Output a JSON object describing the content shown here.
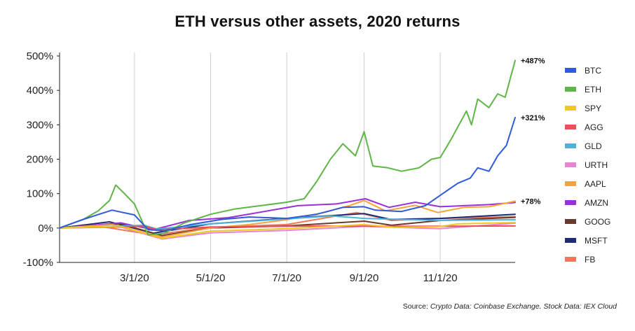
{
  "chart_data": {
    "type": "line",
    "title": "ETH versus other assets, 2020 returns",
    "xlabel": "",
    "ylabel": "",
    "x_range": [
      "2020-01-01",
      "2020-12-31"
    ],
    "ylim": [
      -100,
      500
    ],
    "y_ticks": [
      -100,
      0,
      100,
      200,
      300,
      400,
      500
    ],
    "y_tick_labels": [
      "-100%",
      "0%",
      "100%",
      "200%",
      "300%",
      "400%",
      "500%"
    ],
    "x_ticks": [
      "2020-03-01",
      "2020-05-01",
      "2020-07-01",
      "2020-09-01",
      "2020-11-01"
    ],
    "x_tick_labels": [
      "3/1/20",
      "5/1/20",
      "7/1/20",
      "9/1/20",
      "11/1/20"
    ],
    "grid": "vertical lines at x ticks",
    "legend_position": "right",
    "end_labels": [
      {
        "text": "+487%",
        "series": "ETH",
        "value": 487
      },
      {
        "text": "+321%",
        "series": "BTC",
        "value": 321
      },
      {
        "text": "+78%",
        "series": "AAPL",
        "value": 78
      }
    ],
    "series": [
      {
        "name": "BTC",
        "color": "#2f5bd8",
        "points": [
          [
            "2020-01-01",
            0
          ],
          [
            "2020-01-20",
            25
          ],
          [
            "2020-02-12",
            52
          ],
          [
            "2020-03-01",
            38
          ],
          [
            "2020-03-12",
            -5
          ],
          [
            "2020-03-25",
            -8
          ],
          [
            "2020-04-15",
            10
          ],
          [
            "2020-05-10",
            25
          ],
          [
            "2020-06-01",
            32
          ],
          [
            "2020-07-01",
            28
          ],
          [
            "2020-07-25",
            40
          ],
          [
            "2020-08-15",
            60
          ],
          [
            "2020-09-01",
            62
          ],
          [
            "2020-09-10",
            52
          ],
          [
            "2020-10-01",
            48
          ],
          [
            "2020-10-20",
            65
          ],
          [
            "2020-11-01",
            95
          ],
          [
            "2020-11-15",
            130
          ],
          [
            "2020-11-25",
            145
          ],
          [
            "2020-12-01",
            175
          ],
          [
            "2020-12-10",
            165
          ],
          [
            "2020-12-17",
            210
          ],
          [
            "2020-12-24",
            240
          ],
          [
            "2020-12-31",
            321
          ]
        ]
      },
      {
        "name": "ETH",
        "color": "#5fb547",
        "points": [
          [
            "2020-01-01",
            0
          ],
          [
            "2020-01-20",
            25
          ],
          [
            "2020-02-01",
            50
          ],
          [
            "2020-02-10",
            80
          ],
          [
            "2020-02-15",
            125
          ],
          [
            "2020-02-22",
            100
          ],
          [
            "2020-03-01",
            70
          ],
          [
            "2020-03-12",
            -20
          ],
          [
            "2020-03-25",
            -15
          ],
          [
            "2020-04-10",
            15
          ],
          [
            "2020-05-01",
            40
          ],
          [
            "2020-05-20",
            55
          ],
          [
            "2020-06-10",
            65
          ],
          [
            "2020-07-01",
            75
          ],
          [
            "2020-07-15",
            85
          ],
          [
            "2020-07-25",
            135
          ],
          [
            "2020-08-05",
            200
          ],
          [
            "2020-08-15",
            245
          ],
          [
            "2020-08-25",
            210
          ],
          [
            "2020-09-01",
            280
          ],
          [
            "2020-09-08",
            180
          ],
          [
            "2020-09-20",
            175
          ],
          [
            "2020-10-01",
            165
          ],
          [
            "2020-10-15",
            175
          ],
          [
            "2020-10-25",
            200
          ],
          [
            "2020-11-01",
            205
          ],
          [
            "2020-11-10",
            260
          ],
          [
            "2020-11-22",
            340
          ],
          [
            "2020-11-26",
            300
          ],
          [
            "2020-12-01",
            375
          ],
          [
            "2020-12-10",
            350
          ],
          [
            "2020-12-17",
            390
          ],
          [
            "2020-12-23",
            380
          ],
          [
            "2020-12-31",
            487
          ]
        ]
      },
      {
        "name": "SPY",
        "color": "#f2c81f",
        "points": [
          [
            "2020-01-01",
            0
          ],
          [
            "2020-02-19",
            5
          ],
          [
            "2020-03-23",
            -30
          ],
          [
            "2020-05-01",
            -9
          ],
          [
            "2020-07-01",
            -2
          ],
          [
            "2020-09-01",
            10
          ],
          [
            "2020-09-25",
            2
          ],
          [
            "2020-10-31",
            4
          ],
          [
            "2020-11-15",
            12
          ],
          [
            "2020-12-31",
            16
          ]
        ]
      },
      {
        "name": "AGG",
        "color": "#e8505b",
        "points": [
          [
            "2020-01-01",
            0
          ],
          [
            "2020-03-09",
            5
          ],
          [
            "2020-03-20",
            -5
          ],
          [
            "2020-05-01",
            3
          ],
          [
            "2020-08-01",
            6
          ],
          [
            "2020-10-01",
            5
          ],
          [
            "2020-12-31",
            6
          ]
        ]
      },
      {
        "name": "GLD",
        "color": "#4fb3d9",
        "points": [
          [
            "2020-01-01",
            0
          ],
          [
            "2020-03-09",
            8
          ],
          [
            "2020-03-19",
            -3
          ],
          [
            "2020-05-01",
            12
          ],
          [
            "2020-08-06",
            35
          ],
          [
            "2020-09-01",
            28
          ],
          [
            "2020-11-01",
            22
          ],
          [
            "2020-12-31",
            24
          ]
        ]
      },
      {
        "name": "URTH",
        "color": "#e685d0",
        "points": [
          [
            "2020-01-01",
            0
          ],
          [
            "2020-02-19",
            3
          ],
          [
            "2020-03-23",
            -32
          ],
          [
            "2020-05-01",
            -14
          ],
          [
            "2020-07-01",
            -7
          ],
          [
            "2020-09-01",
            5
          ],
          [
            "2020-10-31",
            -2
          ],
          [
            "2020-12-31",
            14
          ]
        ]
      },
      {
        "name": "AAPL",
        "color": "#f7a33a",
        "points": [
          [
            "2020-01-01",
            0
          ],
          [
            "2020-02-12",
            10
          ],
          [
            "2020-03-23",
            -26
          ],
          [
            "2020-05-01",
            0
          ],
          [
            "2020-06-01",
            10
          ],
          [
            "2020-07-01",
            24
          ],
          [
            "2020-07-31",
            45
          ],
          [
            "2020-08-20",
            65
          ],
          [
            "2020-09-01",
            80
          ],
          [
            "2020-09-18",
            50
          ],
          [
            "2020-10-12",
            66
          ],
          [
            "2020-10-30",
            45
          ],
          [
            "2020-11-20",
            60
          ],
          [
            "2020-12-10",
            62
          ],
          [
            "2020-12-31",
            78
          ]
        ]
      },
      {
        "name": "AMZN",
        "color": "#9b2fd8",
        "points": [
          [
            "2020-01-01",
            0
          ],
          [
            "2020-02-19",
            15
          ],
          [
            "2020-03-16",
            -5
          ],
          [
            "2020-04-14",
            22
          ],
          [
            "2020-05-15",
            30
          ],
          [
            "2020-07-10",
            65
          ],
          [
            "2020-08-10",
            70
          ],
          [
            "2020-09-02",
            85
          ],
          [
            "2020-09-21",
            60
          ],
          [
            "2020-10-12",
            75
          ],
          [
            "2020-11-01",
            62
          ],
          [
            "2020-11-20",
            65
          ],
          [
            "2020-12-10",
            68
          ],
          [
            "2020-12-31",
            74
          ]
        ]
      },
      {
        "name": "GOOG",
        "color": "#6b3a2a",
        "points": [
          [
            "2020-01-01",
            0
          ],
          [
            "2020-02-19",
            12
          ],
          [
            "2020-03-23",
            -22
          ],
          [
            "2020-05-01",
            0
          ],
          [
            "2020-07-01",
            6
          ],
          [
            "2020-09-01",
            20
          ],
          [
            "2020-09-23",
            8
          ],
          [
            "2020-11-01",
            22
          ],
          [
            "2020-12-31",
            31
          ]
        ]
      },
      {
        "name": "MSFT",
        "color": "#1e2a78",
        "points": [
          [
            "2020-01-01",
            0
          ],
          [
            "2020-02-10",
            18
          ],
          [
            "2020-03-16",
            -15
          ],
          [
            "2020-05-01",
            12
          ],
          [
            "2020-07-01",
            28
          ],
          [
            "2020-09-01",
            42
          ],
          [
            "2020-09-22",
            25
          ],
          [
            "2020-11-01",
            28
          ],
          [
            "2020-12-31",
            40
          ]
        ]
      },
      {
        "name": "FB",
        "color": "#ec7a5a",
        "points": [
          [
            "2020-01-01",
            0
          ],
          [
            "2020-01-28",
            8
          ],
          [
            "2020-03-16",
            -20
          ],
          [
            "2020-05-01",
            2
          ],
          [
            "2020-07-01",
            10
          ],
          [
            "2020-08-26",
            45
          ],
          [
            "2020-09-23",
            22
          ],
          [
            "2020-11-01",
            28
          ],
          [
            "2020-12-31",
            33
          ]
        ]
      }
    ]
  },
  "source": {
    "prefix": "Source: ",
    "crypto": "Crypto Data: Coinbase Exchange. Stock Data: ",
    "stock": "IEX Cloud"
  }
}
